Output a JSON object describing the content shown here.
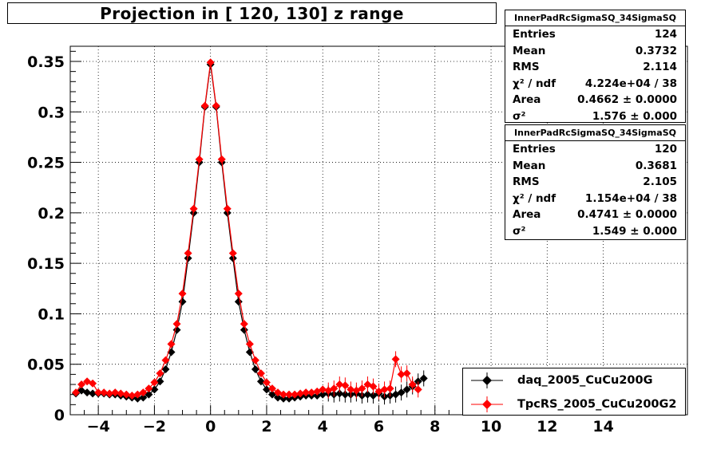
{
  "title": "Projection in [ 120, 130] z range",
  "stats_boxes": [
    {
      "name": "InnerPadRcSigmaSQ_34SigmaSQ",
      "rows": [
        {
          "key": "Entries",
          "value": "124"
        },
        {
          "key": "Mean",
          "value": "0.3732"
        },
        {
          "key": "RMS",
          "value": "2.114"
        },
        {
          "key": "χ² / ndf",
          "value": "4.224e+04 / 38"
        },
        {
          "key": "Area",
          "value": "0.4662 ± 0.0000"
        },
        {
          "key": "σ²",
          "value": "1.576 ± 0.000"
        }
      ]
    },
    {
      "name": "InnerPadRcSigmaSQ_34SigmaSQ",
      "rows": [
        {
          "key": "Entries",
          "value": "120"
        },
        {
          "key": "Mean",
          "value": "0.3681"
        },
        {
          "key": "RMS",
          "value": "2.105"
        },
        {
          "key": "χ² / ndf",
          "value": "1.154e+04 / 38"
        },
        {
          "key": "Area",
          "value": "0.4741 ± 0.0000"
        },
        {
          "key": "σ²",
          "value": "1.549 ± 0.000"
        }
      ]
    }
  ],
  "legend": [
    {
      "label": "daq_2005_CuCu200G",
      "color": "#000000"
    },
    {
      "label": "TpcRS_2005_CuCu200G2",
      "color": "#ff0000"
    }
  ],
  "chart_data": {
    "type": "scatter",
    "title": "Projection in [ 120, 130] z range",
    "xlim": [
      -5,
      17
    ],
    "ylim": [
      0,
      0.365
    ],
    "grid": true,
    "log_y": false,
    "legend_position": "bottom-right",
    "x_ticks": [
      -4,
      -2,
      0,
      2,
      4,
      6,
      8,
      10,
      12,
      14
    ],
    "x_tick_labels": [
      "−4",
      "−2",
      "0",
      "2",
      "4",
      "6",
      "8",
      "10",
      "12",
      "14"
    ],
    "y_ticks": [
      0,
      0.05,
      0.1,
      0.15,
      0.2,
      0.25,
      0.3,
      0.35
    ],
    "y_tick_labels": [
      "0",
      "0.05",
      "0.1",
      "0.15",
      "0.2",
      "0.25",
      "0.3",
      "0.35"
    ],
    "series": [
      {
        "name": "daq_2005_CuCu200G",
        "color": "#000000",
        "points": [
          [
            -4.8,
            0.021
          ],
          [
            -4.6,
            0.024
          ],
          [
            -4.4,
            0.022
          ],
          [
            -4.2,
            0.021
          ],
          [
            -4.0,
            0.021
          ],
          [
            -3.8,
            0.021
          ],
          [
            -3.6,
            0.02
          ],
          [
            -3.4,
            0.02
          ],
          [
            -3.2,
            0.019
          ],
          [
            -3.0,
            0.018
          ],
          [
            -2.8,
            0.017
          ],
          [
            -2.6,
            0.016
          ],
          [
            -2.4,
            0.017
          ],
          [
            -2.2,
            0.02
          ],
          [
            -2.0,
            0.025
          ],
          [
            -1.8,
            0.033
          ],
          [
            -1.6,
            0.045
          ],
          [
            -1.4,
            0.062
          ],
          [
            -1.2,
            0.084
          ],
          [
            -1.0,
            0.112
          ],
          [
            -0.8,
            0.155
          ],
          [
            -0.6,
            0.2
          ],
          [
            -0.4,
            0.25
          ],
          [
            -0.2,
            0.305
          ],
          [
            0.0,
            0.347
          ],
          [
            0.2,
            0.305
          ],
          [
            0.4,
            0.25
          ],
          [
            0.6,
            0.2
          ],
          [
            0.8,
            0.155
          ],
          [
            1.0,
            0.112
          ],
          [
            1.2,
            0.084
          ],
          [
            1.4,
            0.062
          ],
          [
            1.6,
            0.045
          ],
          [
            1.8,
            0.033
          ],
          [
            2.0,
            0.025
          ],
          [
            2.2,
            0.02
          ],
          [
            2.4,
            0.017
          ],
          [
            2.6,
            0.016
          ],
          [
            2.8,
            0.016
          ],
          [
            3.0,
            0.017
          ],
          [
            3.2,
            0.018
          ],
          [
            3.4,
            0.019
          ],
          [
            3.6,
            0.019
          ],
          [
            3.8,
            0.019
          ],
          [
            4.0,
            0.02
          ],
          [
            4.2,
            0.021
          ],
          [
            4.4,
            0.02
          ],
          [
            4.6,
            0.021
          ],
          [
            4.8,
            0.02
          ],
          [
            5.0,
            0.02
          ],
          [
            5.2,
            0.021
          ],
          [
            5.4,
            0.019
          ],
          [
            5.6,
            0.02
          ],
          [
            5.8,
            0.019
          ],
          [
            6.0,
            0.021
          ],
          [
            6.2,
            0.018
          ],
          [
            6.4,
            0.019
          ],
          [
            6.6,
            0.02
          ],
          [
            6.8,
            0.022
          ],
          [
            7.0,
            0.025
          ],
          [
            7.2,
            0.028
          ],
          [
            7.4,
            0.033
          ],
          [
            7.6,
            0.036
          ]
        ]
      },
      {
        "name": "TpcRS_2005_CuCu200G2",
        "color": "#ff0000",
        "points": [
          [
            -4.8,
            0.022
          ],
          [
            -4.6,
            0.03
          ],
          [
            -4.4,
            0.033
          ],
          [
            -4.2,
            0.031
          ],
          [
            -4.0,
            0.022
          ],
          [
            -3.8,
            0.022
          ],
          [
            -3.6,
            0.021
          ],
          [
            -3.4,
            0.022
          ],
          [
            -3.2,
            0.021
          ],
          [
            -3.0,
            0.02
          ],
          [
            -2.8,
            0.019
          ],
          [
            -2.6,
            0.02
          ],
          [
            -2.4,
            0.022
          ],
          [
            -2.2,
            0.026
          ],
          [
            -2.0,
            0.032
          ],
          [
            -1.8,
            0.041
          ],
          [
            -1.6,
            0.054
          ],
          [
            -1.4,
            0.07
          ],
          [
            -1.2,
            0.09
          ],
          [
            -1.0,
            0.12
          ],
          [
            -0.8,
            0.16
          ],
          [
            -0.6,
            0.204
          ],
          [
            -0.4,
            0.253
          ],
          [
            -0.2,
            0.306
          ],
          [
            0.0,
            0.349
          ],
          [
            0.2,
            0.306
          ],
          [
            0.4,
            0.253
          ],
          [
            0.6,
            0.204
          ],
          [
            0.8,
            0.16
          ],
          [
            1.0,
            0.12
          ],
          [
            1.2,
            0.09
          ],
          [
            1.4,
            0.07
          ],
          [
            1.6,
            0.054
          ],
          [
            1.8,
            0.041
          ],
          [
            2.0,
            0.032
          ],
          [
            2.2,
            0.026
          ],
          [
            2.4,
            0.022
          ],
          [
            2.6,
            0.02
          ],
          [
            2.8,
            0.02
          ],
          [
            3.0,
            0.02
          ],
          [
            3.2,
            0.021
          ],
          [
            3.4,
            0.022
          ],
          [
            3.6,
            0.022
          ],
          [
            3.8,
            0.023
          ],
          [
            4.0,
            0.025
          ],
          [
            4.2,
            0.024
          ],
          [
            4.4,
            0.026
          ],
          [
            4.6,
            0.03
          ],
          [
            4.8,
            0.029
          ],
          [
            5.0,
            0.025
          ],
          [
            5.2,
            0.024
          ],
          [
            5.4,
            0.026
          ],
          [
            5.6,
            0.03
          ],
          [
            5.8,
            0.028
          ],
          [
            6.0,
            0.023
          ],
          [
            6.2,
            0.025
          ],
          [
            6.4,
            0.026
          ],
          [
            6.6,
            0.055
          ],
          [
            6.8,
            0.04
          ],
          [
            7.0,
            0.041
          ],
          [
            7.2,
            0.03
          ],
          [
            7.4,
            0.025
          ]
        ]
      }
    ]
  }
}
